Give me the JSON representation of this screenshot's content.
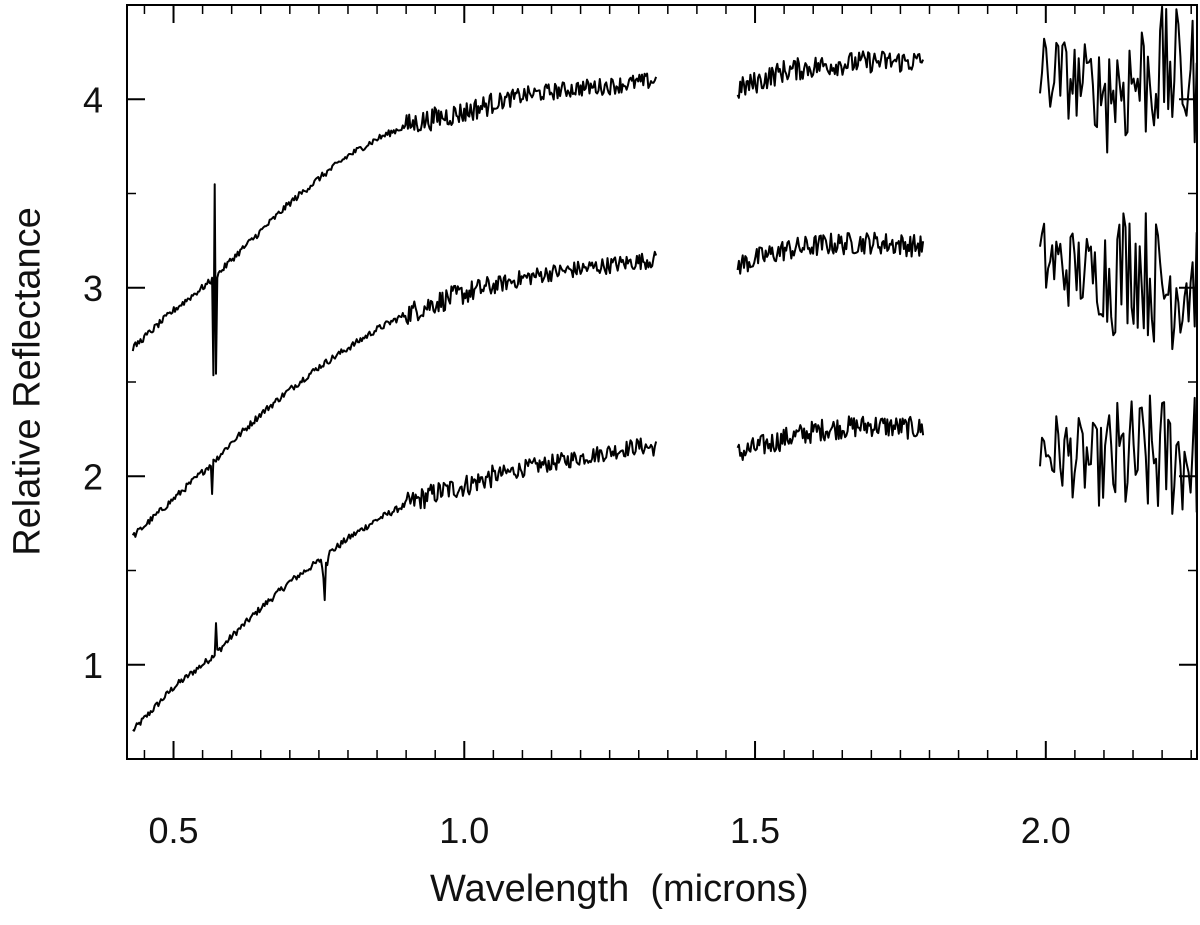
{
  "chart_data": {
    "type": "line",
    "title": "",
    "xlabel": "Wavelength  (microns)",
    "ylabel": "Relative Reflectance",
    "xlim": [
      0.42,
      2.26
    ],
    "ylim": [
      0.5,
      4.5
    ],
    "x_ticks": [
      "0.5",
      "1.0",
      "1.5",
      "2.0"
    ],
    "x_tick_values": [
      0.5,
      1.0,
      1.5,
      2.0
    ],
    "y_ticks": [
      "1",
      "2",
      "3",
      "4"
    ],
    "y_tick_values": [
      1,
      2,
      3,
      4
    ],
    "grid": false,
    "legend": "none",
    "line_color": "#000000",
    "series": [
      {
        "visible_segments": [
          [
            0.43,
            1.33
          ],
          [
            1.47,
            1.79
          ],
          [
            1.99,
            2.26
          ]
        ],
        "x": [
          0.43,
          0.5,
          0.57,
          0.6,
          0.65,
          0.7,
          0.75,
          0.8,
          0.85,
          0.9,
          0.95,
          1.0,
          1.05,
          1.1,
          1.15,
          1.2,
          1.25,
          1.3,
          1.33,
          1.47,
          1.55,
          1.62,
          1.7,
          1.79,
          1.99,
          2.05,
          2.1,
          2.15,
          2.2,
          2.26
        ],
        "values": [
          0.65,
          0.88,
          1.05,
          1.15,
          1.3,
          1.44,
          1.55,
          1.67,
          1.77,
          1.85,
          1.91,
          1.95,
          2.0,
          2.04,
          2.07,
          2.1,
          2.13,
          2.16,
          2.15,
          2.12,
          2.2,
          2.25,
          2.27,
          2.25,
          2.15,
          2.1,
          2.05,
          2.08,
          2.1,
          2.12
        ]
      },
      {
        "visible_segments": [
          [
            0.43,
            1.33
          ],
          [
            1.47,
            1.79
          ],
          [
            1.99,
            2.26
          ]
        ],
        "x": [
          0.43,
          0.5,
          0.57,
          0.6,
          0.65,
          0.7,
          0.75,
          0.8,
          0.85,
          0.9,
          0.95,
          1.0,
          1.05,
          1.1,
          1.15,
          1.2,
          1.25,
          1.3,
          1.33,
          1.47,
          1.55,
          1.62,
          1.7,
          1.79,
          1.99,
          2.05,
          2.1,
          2.15,
          2.2,
          2.26
        ],
        "values": [
          1.68,
          1.88,
          2.08,
          2.18,
          2.33,
          2.46,
          2.58,
          2.68,
          2.78,
          2.86,
          2.92,
          2.97,
          3.01,
          3.05,
          3.08,
          3.1,
          3.12,
          3.14,
          3.15,
          3.12,
          3.2,
          3.23,
          3.24,
          3.22,
          3.15,
          3.1,
          3.05,
          3.15,
          3.0,
          3.05
        ]
      },
      {
        "visible_segments": [
          [
            0.43,
            1.33
          ],
          [
            1.47,
            1.79
          ],
          [
            1.99,
            2.26
          ]
        ],
        "x": [
          0.43,
          0.5,
          0.57,
          0.6,
          0.65,
          0.7,
          0.75,
          0.8,
          0.85,
          0.9,
          0.95,
          1.0,
          1.05,
          1.1,
          1.15,
          1.2,
          1.25,
          1.3,
          1.33,
          1.47,
          1.55,
          1.62,
          1.7,
          1.79,
          1.99,
          2.05,
          2.1,
          2.15,
          2.2,
          2.26
        ],
        "values": [
          2.68,
          2.88,
          3.05,
          3.15,
          3.3,
          3.45,
          3.58,
          3.7,
          3.79,
          3.86,
          3.9,
          3.93,
          3.98,
          4.02,
          4.04,
          4.06,
          4.07,
          4.09,
          4.1,
          4.05,
          4.15,
          4.18,
          4.2,
          4.2,
          4.15,
          4.1,
          4.05,
          4.1,
          4.15,
          4.1
        ]
      }
    ]
  }
}
